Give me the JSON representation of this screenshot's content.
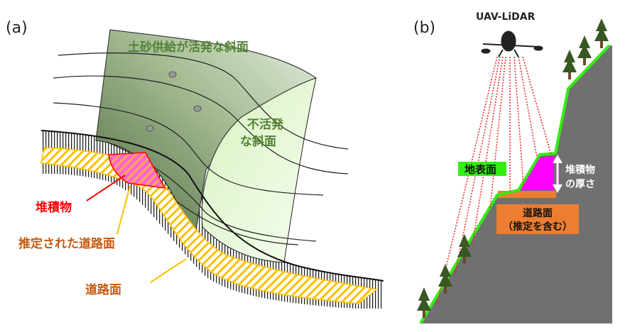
{
  "panel_a": {
    "label": "(a)",
    "active_slope": "土砂供給が活発な斜面",
    "inactive_slope_line1": "不活発",
    "inactive_slope_line2": "な斜面",
    "deposit": "堆積物",
    "estimated_road": "推定された道路面",
    "road": "道路面"
  },
  "panel_b": {
    "label": "(b)",
    "uav": "UAV-LiDAR",
    "ground_surface": "地表面",
    "thickness_line1": "堆積物",
    "thickness_line2": "の厚さ",
    "road_line1": "道路面",
    "road_line2": "（推定を含む）"
  },
  "colors": {
    "active_slope": "#8fa67f",
    "inactive_slope": "#e8f8d8",
    "road_hatch": "#ffc000",
    "deposit": "#ff3399",
    "deposit_text": "#ff0000",
    "road_text": "#c55a11",
    "slope_text": "#548235",
    "ground_green": "#33ee11",
    "mountain": "#707070",
    "road_box": "#ed7d31",
    "sediment": "#ff00ff"
  }
}
